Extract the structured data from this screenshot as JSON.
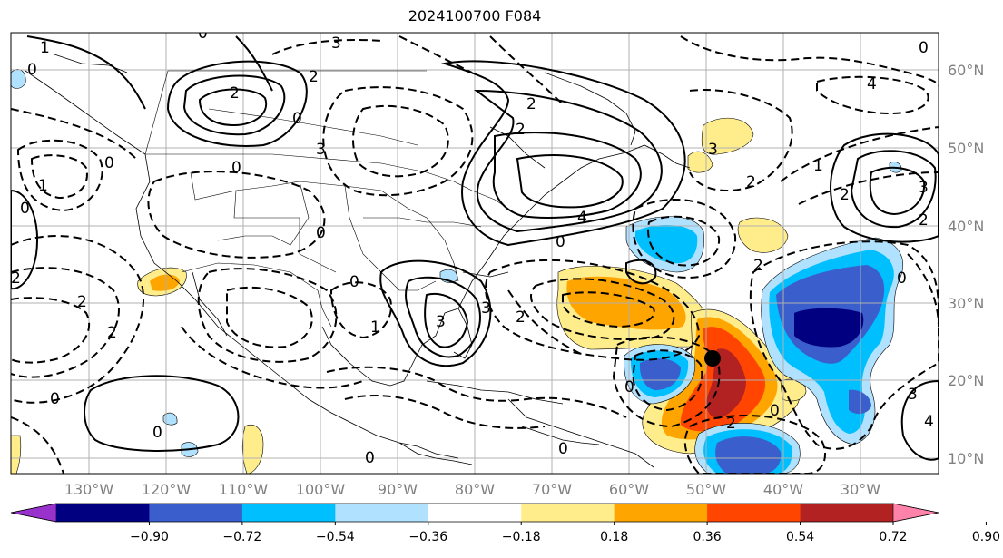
{
  "title": "2024100700 F084",
  "lon_labels": [
    "130°W",
    "120°W",
    "110°W",
    "100°W",
    "90°W",
    "80°W",
    "70°W",
    "60°W",
    "50°W",
    "40°W",
    "30°W"
  ],
  "lat_labels": [
    "60°N",
    "50°N",
    "40°N",
    "30°N",
    "20°N",
    "10°N"
  ],
  "colorbar": {
    "ticks": [
      "−0.90",
      "−0.72",
      "−0.54",
      "−0.36",
      "−0.18",
      "0.18",
      "0.36",
      "0.54",
      "0.72",
      "0.90"
    ],
    "colors": [
      "#9932cc",
      "#000080",
      "#3a5fcd",
      "#00bfff",
      "#b0e2ff",
      "#ffffff",
      "#ffec8b",
      "#ffa500",
      "#ff4500",
      "#b22222",
      "#ff82ab"
    ]
  },
  "contour_labels": [
    "1",
    "3",
    "0",
    "2",
    "2",
    "0",
    "3",
    "2",
    "2",
    "3",
    "4",
    "0",
    "1",
    "0",
    "0",
    "2",
    "2",
    "0",
    "0",
    "3",
    "1",
    "3",
    "0",
    "2",
    "4",
    "2",
    "3",
    "1",
    "2",
    "0",
    "0",
    "2",
    "0",
    "2",
    "4",
    "3",
    "2",
    "0",
    "0",
    "0",
    "0",
    "0",
    "2",
    "0"
  ],
  "storm_marker": {
    "lon": -49,
    "lat": 23
  }
}
